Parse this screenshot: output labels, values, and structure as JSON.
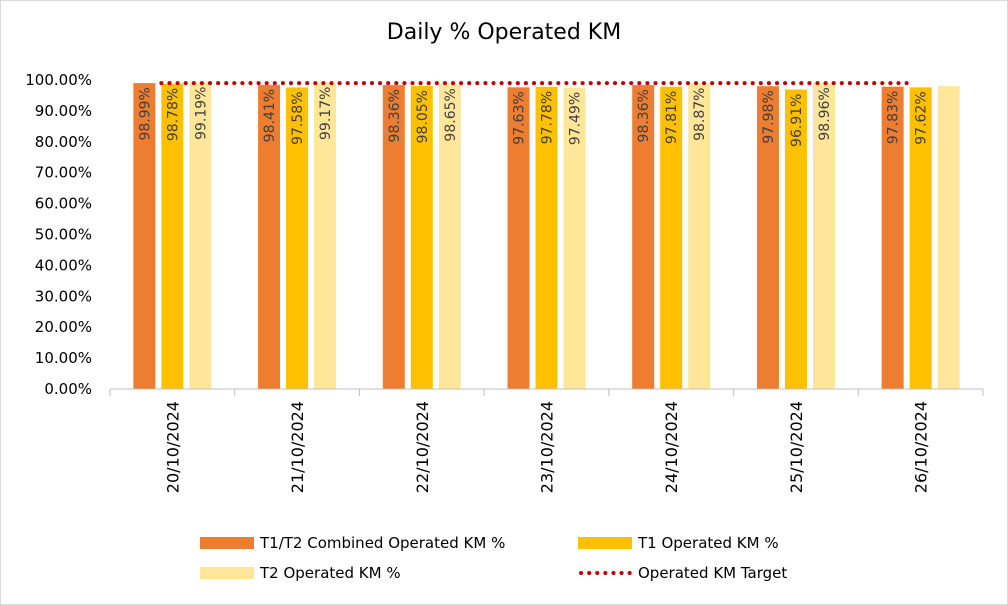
{
  "chart_data": {
    "type": "bar",
    "title": "Daily % Operated KM",
    "categories": [
      "20/10/2024",
      "21/10/2024",
      "22/10/2024",
      "23/10/2024",
      "24/10/2024",
      "25/10/2024",
      "26/10/2024"
    ],
    "series": [
      {
        "name": "T1/T2 Combined Operated KM %",
        "color": "#ED7D31",
        "values": [
          98.99,
          98.41,
          98.36,
          97.63,
          98.36,
          97.98,
          97.83
        ],
        "labels": [
          "98.99%",
          "98.41%",
          "98.36%",
          "97.63%",
          "98.36%",
          "97.98%",
          "97.83%"
        ]
      },
      {
        "name": "T1 Operated KM %",
        "color": "#FFC000",
        "values": [
          98.78,
          97.58,
          98.05,
          97.78,
          97.81,
          96.91,
          97.62
        ],
        "labels": [
          "98.78%",
          "97.58%",
          "98.05%",
          "97.78%",
          "97.81%",
          "96.91%",
          "97.62%"
        ]
      },
      {
        "name": "T2 Operated KM %",
        "color": "#FFE699",
        "values": [
          99.19,
          99.17,
          98.65,
          97.49,
          98.87,
          98.96,
          98.02
        ],
        "labels": [
          "99.19%",
          "99.17%",
          "98.65%",
          "97.49%",
          "98.87%",
          "98.96%",
          null
        ]
      }
    ],
    "target": {
      "name": "Operated KM Target",
      "color": "#C00000",
      "value": 99
    },
    "ylim": [
      0,
      100
    ],
    "yticks": [
      0,
      10,
      20,
      30,
      40,
      50,
      60,
      70,
      80,
      90,
      100
    ],
    "ytick_labels": [
      "0.00%",
      "10.00%",
      "20.00%",
      "30.00%",
      "40.00%",
      "50.00%",
      "60.00%",
      "70.00%",
      "80.00%",
      "90.00%",
      "100.00%"
    ],
    "legend_position": "bottom",
    "grid": false
  },
  "legend": {
    "combined": "T1/T2 Combined Operated KM %",
    "t1": "T1 Operated KM %",
    "t2": "T2 Operated KM %",
    "target": "Operated KM Target"
  }
}
